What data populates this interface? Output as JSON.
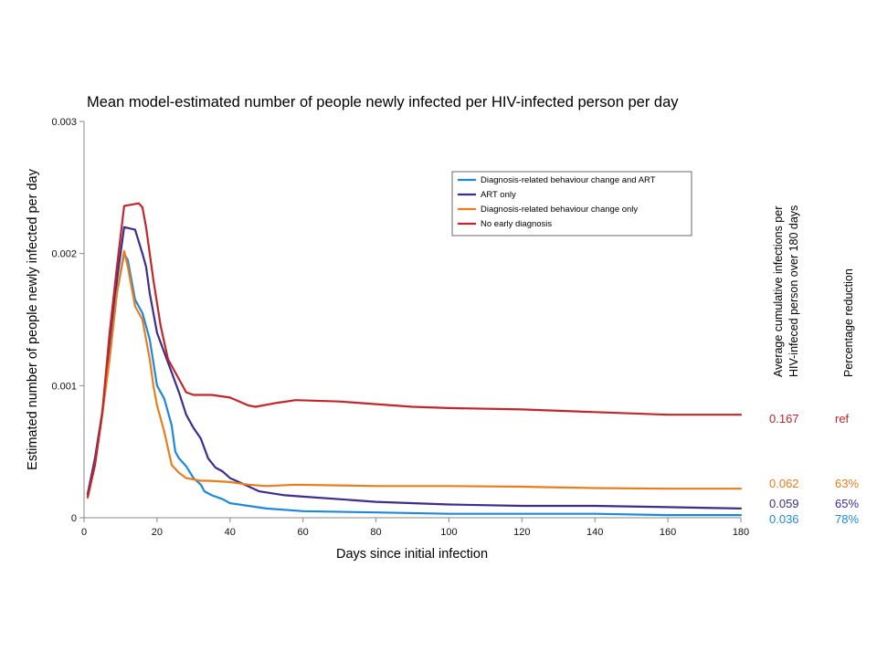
{
  "chart_data": {
    "type": "line",
    "title": "Mean model-estimated number of people newly infected per HIV-infected person per day",
    "xlabel": "Days since initial infection",
    "ylabel": "Estimated number of people newly infected per day",
    "xlim": [
      0,
      180
    ],
    "ylim": [
      0,
      0.003
    ],
    "x_ticks": [
      0,
      20,
      40,
      60,
      80,
      100,
      120,
      140,
      160,
      180
    ],
    "y_ticks": [
      0,
      0.001,
      0.002,
      0.003
    ],
    "y_tick_labels": [
      "0",
      "0.001",
      "0.002",
      "0.003"
    ],
    "grid": false,
    "legend_position": "top-right",
    "series": [
      {
        "name": "Diagnosis-related behaviour change and ART",
        "color": "#1f88d8",
        "points": [
          [
            1,
            0.00018
          ],
          [
            3,
            0.00045
          ],
          [
            5,
            0.0008
          ],
          [
            7,
            0.00125
          ],
          [
            9,
            0.0017
          ],
          [
            11,
            0.002
          ],
          [
            12,
            0.00195
          ],
          [
            14,
            0.00165
          ],
          [
            16,
            0.00155
          ],
          [
            18,
            0.00135
          ],
          [
            20,
            0.001
          ],
          [
            22,
            0.0009
          ],
          [
            24,
            0.0007
          ],
          [
            25,
            0.0005
          ],
          [
            26,
            0.00045
          ],
          [
            28,
            0.00039
          ],
          [
            30,
            0.0003
          ],
          [
            32,
            0.00025
          ],
          [
            33,
            0.0002
          ],
          [
            35,
            0.00017
          ],
          [
            38,
            0.00014
          ],
          [
            40,
            0.00011
          ],
          [
            45,
            9e-05
          ],
          [
            50,
            7e-05
          ],
          [
            60,
            5e-05
          ],
          [
            80,
            4e-05
          ],
          [
            100,
            3e-05
          ],
          [
            120,
            3e-05
          ],
          [
            140,
            3e-05
          ],
          [
            160,
            2e-05
          ],
          [
            180,
            2e-05
          ]
        ]
      },
      {
        "name": "ART only",
        "color": "#3b2e8c",
        "points": [
          [
            1,
            0.00018
          ],
          [
            3,
            0.00045
          ],
          [
            5,
            0.0008
          ],
          [
            7,
            0.00125
          ],
          [
            9,
            0.0018
          ],
          [
            11,
            0.0022
          ],
          [
            14,
            0.00218
          ],
          [
            16,
            0.002
          ],
          [
            17,
            0.0019
          ],
          [
            18,
            0.0017
          ],
          [
            20,
            0.0014
          ],
          [
            22,
            0.00125
          ],
          [
            24,
            0.0011
          ],
          [
            26,
            0.00095
          ],
          [
            28,
            0.00078
          ],
          [
            30,
            0.00068
          ],
          [
            32,
            0.0006
          ],
          [
            34,
            0.00045
          ],
          [
            36,
            0.00038
          ],
          [
            38,
            0.00035
          ],
          [
            40,
            0.0003
          ],
          [
            44,
            0.00025
          ],
          [
            48,
            0.0002
          ],
          [
            55,
            0.00017
          ],
          [
            60,
            0.00016
          ],
          [
            70,
            0.00014
          ],
          [
            80,
            0.00012
          ],
          [
            100,
            0.0001
          ],
          [
            120,
            9e-05
          ],
          [
            140,
            9e-05
          ],
          [
            160,
            8e-05
          ],
          [
            180,
            7e-05
          ]
        ]
      },
      {
        "name": "Diagnosis-related behaviour change only",
        "color": "#e87d1e",
        "points": [
          [
            1,
            0.00015
          ],
          [
            3,
            0.0004
          ],
          [
            5,
            0.00078
          ],
          [
            7,
            0.0012
          ],
          [
            9,
            0.0017
          ],
          [
            11,
            0.00202
          ],
          [
            12,
            0.0019
          ],
          [
            14,
            0.0016
          ],
          [
            16,
            0.0015
          ],
          [
            18,
            0.0012
          ],
          [
            19,
            0.001
          ],
          [
            20,
            0.00085
          ],
          [
            22,
            0.00065
          ],
          [
            24,
            0.0004
          ],
          [
            26,
            0.00034
          ],
          [
            28,
            0.0003
          ],
          [
            30,
            0.00029
          ],
          [
            32,
            0.00028
          ],
          [
            34,
            0.00028
          ],
          [
            40,
            0.00027
          ],
          [
            45,
            0.00025
          ],
          [
            50,
            0.00024
          ],
          [
            58,
            0.00025
          ],
          [
            70,
            0.000245
          ],
          [
            80,
            0.00024
          ],
          [
            100,
            0.00024
          ],
          [
            120,
            0.000235
          ],
          [
            140,
            0.000225
          ],
          [
            160,
            0.00022
          ],
          [
            180,
            0.00022
          ]
        ]
      },
      {
        "name": "No early diagnosis",
        "color": "#c0262b",
        "points": [
          [
            1,
            0.00016
          ],
          [
            3,
            0.0004
          ],
          [
            5,
            0.0008
          ],
          [
            7,
            0.0014
          ],
          [
            9,
            0.0019
          ],
          [
            11,
            0.00236
          ],
          [
            15,
            0.00238
          ],
          [
            16,
            0.00235
          ],
          [
            17,
            0.0022
          ],
          [
            19,
            0.0018
          ],
          [
            21,
            0.00145
          ],
          [
            23,
            0.0012
          ],
          [
            26,
            0.00105
          ],
          [
            28,
            0.00095
          ],
          [
            30,
            0.00093
          ],
          [
            35,
            0.00093
          ],
          [
            40,
            0.00091
          ],
          [
            45,
            0.00085
          ],
          [
            47,
            0.00084
          ],
          [
            53,
            0.00087
          ],
          [
            58,
            0.00089
          ],
          [
            70,
            0.00088
          ],
          [
            80,
            0.00086
          ],
          [
            90,
            0.00084
          ],
          [
            100,
            0.00083
          ],
          [
            120,
            0.00082
          ],
          [
            140,
            0.0008
          ],
          [
            160,
            0.00078
          ],
          [
            180,
            0.00078
          ]
        ]
      }
    ],
    "side_table": {
      "column1_header_line1": "Average cumulative infections per",
      "column1_header_line2": "HIV-infeced person over 180 days",
      "column2_header": "Percentage reduction",
      "rows": [
        {
          "value": "0.167",
          "reduction": "ref",
          "color": "#c0262b",
          "value_color": "#c0262b"
        },
        {
          "value": "0.062",
          "reduction": "63%",
          "color": "#e87d1e",
          "value_color": "#e87d1e"
        },
        {
          "value": "0.059",
          "reduction": "65%",
          "color": "#3b2e8c",
          "value_color": "#3b2e8c"
        },
        {
          "value": "0.036",
          "reduction": "78%",
          "color": "#1f88d8",
          "value_color": "#1f88d8"
        }
      ]
    }
  }
}
